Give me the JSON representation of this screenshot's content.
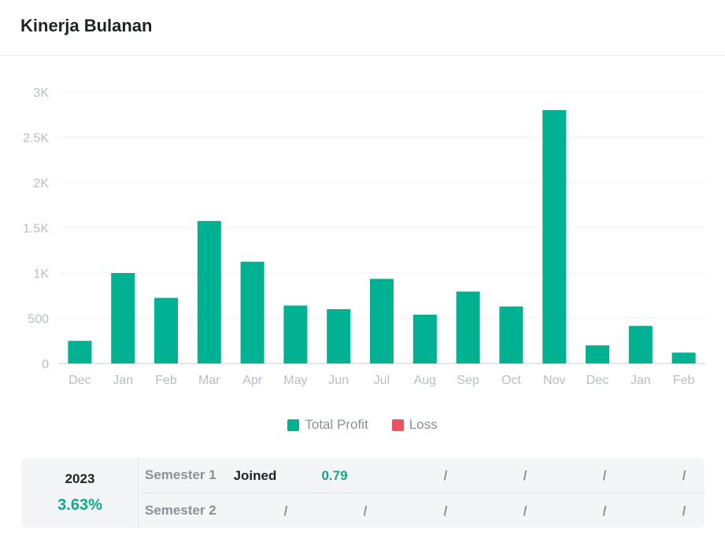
{
  "header": {
    "title": "Kinerja Bulanan"
  },
  "colors": {
    "profit": "#00b192",
    "loss": "#ea5461",
    "positive": "#0fa98a"
  },
  "chart_data": {
    "type": "bar",
    "title": "Kinerja Bulanan",
    "categories": [
      "Dec",
      "Jan",
      "Feb",
      "Mar",
      "Apr",
      "May",
      "Jun",
      "Jul",
      "Aug",
      "Sep",
      "Oct",
      "Nov",
      "Dec",
      "Jan",
      "Feb"
    ],
    "series": [
      {
        "name": "Total Profit",
        "values": [
          250,
          1000,
          725,
          1575,
          1125,
          640,
          600,
          935,
          540,
          795,
          630,
          2800,
          200,
          415,
          120
        ]
      },
      {
        "name": "Loss",
        "values": [
          0,
          0,
          0,
          0,
          0,
          0,
          0,
          0,
          0,
          0,
          0,
          0,
          0,
          0,
          0
        ]
      }
    ],
    "y_ticks": [
      0,
      500,
      1000,
      1500,
      2000,
      2500,
      3000
    ],
    "y_tick_labels": [
      "0",
      "500",
      "1K",
      "1.5K",
      "2K",
      "2.5K",
      "3K"
    ],
    "ylim": [
      0,
      3000
    ],
    "xlabel": "",
    "ylabel": "",
    "grid": true,
    "legend": [
      "Total Profit",
      "Loss"
    ],
    "legend_position": "bottom"
  },
  "summary": {
    "year": "2023",
    "year_value": "3.63%",
    "semesters": [
      {
        "name": "Semester 1",
        "cells": [
          "Joined",
          "0.79",
          "/",
          "/",
          "/",
          "/"
        ]
      },
      {
        "name": "Semester 2",
        "cells": [
          "/",
          "/",
          "/",
          "/",
          "/",
          "/"
        ]
      }
    ]
  }
}
